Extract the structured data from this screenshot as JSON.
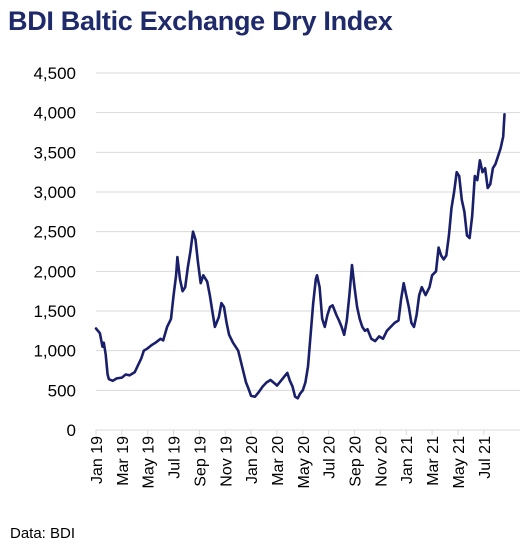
{
  "title": "BDI Baltic Exchange Dry Index",
  "source": "Data: BDI",
  "colors": {
    "title": "#1f2a6b",
    "line": "#1a1f6b",
    "grid": "#d9d9d9"
  },
  "chart_data": {
    "type": "line",
    "title": "BDI Baltic Exchange Dry Index",
    "xlabel": "",
    "ylabel": "",
    "ylim": [
      0,
      4500
    ],
    "yticks": [
      0,
      500,
      1000,
      1500,
      2000,
      2500,
      3000,
      3500,
      4000,
      4500
    ],
    "ytick_labels": [
      "0",
      "500",
      "1,000",
      "1,500",
      "2,000",
      "2,500",
      "3,000",
      "3,500",
      "4,000",
      "4,500"
    ],
    "xlim": [
      0,
      32.8
    ],
    "xticks": [
      0,
      2,
      4,
      6,
      8,
      10,
      12,
      14,
      16,
      18,
      20,
      22,
      24,
      26,
      28,
      30
    ],
    "xtick_labels": [
      "Jan 19",
      "Mar 19",
      "May 19",
      "Jul 19",
      "Sep 19",
      "Nov 19",
      "Jan 20",
      "Mar 20",
      "May 20",
      "Jul 20",
      "Sep 20",
      "Nov 20",
      "Jan 21",
      "Mar 21",
      "May 21",
      "Jul 21"
    ],
    "grid": true,
    "legend": "none",
    "series": [
      {
        "points": [
          [
            0.0,
            1280
          ],
          [
            0.3,
            1220
          ],
          [
            0.5,
            1050
          ],
          [
            0.6,
            1100
          ],
          [
            0.75,
            950
          ],
          [
            0.9,
            700
          ],
          [
            1.0,
            640
          ],
          [
            1.3,
            620
          ],
          [
            1.6,
            650
          ],
          [
            2.0,
            660
          ],
          [
            2.3,
            700
          ],
          [
            2.6,
            690
          ],
          [
            3.0,
            730
          ],
          [
            3.2,
            800
          ],
          [
            3.5,
            900
          ],
          [
            3.7,
            1000
          ],
          [
            4.0,
            1030
          ],
          [
            4.3,
            1070
          ],
          [
            4.6,
            1100
          ],
          [
            5.0,
            1150
          ],
          [
            5.2,
            1130
          ],
          [
            5.5,
            1300
          ],
          [
            5.8,
            1400
          ],
          [
            6.0,
            1700
          ],
          [
            6.2,
            1950
          ],
          [
            6.3,
            2180
          ],
          [
            6.5,
            1900
          ],
          [
            6.7,
            1750
          ],
          [
            6.9,
            1800
          ],
          [
            7.1,
            2050
          ],
          [
            7.3,
            2250
          ],
          [
            7.5,
            2500
          ],
          [
            7.7,
            2400
          ],
          [
            7.9,
            2100
          ],
          [
            8.1,
            1850
          ],
          [
            8.3,
            1950
          ],
          [
            8.6,
            1870
          ],
          [
            8.8,
            1700
          ],
          [
            9.0,
            1500
          ],
          [
            9.2,
            1300
          ],
          [
            9.5,
            1420
          ],
          [
            9.7,
            1600
          ],
          [
            9.9,
            1550
          ],
          [
            10.1,
            1350
          ],
          [
            10.3,
            1200
          ],
          [
            10.6,
            1100
          ],
          [
            11.0,
            1000
          ],
          [
            11.3,
            800
          ],
          [
            11.6,
            600
          ],
          [
            11.8,
            520
          ],
          [
            12.0,
            430
          ],
          [
            12.3,
            420
          ],
          [
            12.6,
            480
          ],
          [
            12.9,
            550
          ],
          [
            13.2,
            600
          ],
          [
            13.5,
            630
          ],
          [
            13.8,
            590
          ],
          [
            14.0,
            560
          ],
          [
            14.3,
            620
          ],
          [
            14.6,
            680
          ],
          [
            14.8,
            720
          ],
          [
            15.0,
            620
          ],
          [
            15.2,
            550
          ],
          [
            15.4,
            420
          ],
          [
            15.6,
            400
          ],
          [
            15.8,
            460
          ],
          [
            16.0,
            500
          ],
          [
            16.2,
            600
          ],
          [
            16.4,
            800
          ],
          [
            16.6,
            1200
          ],
          [
            16.8,
            1600
          ],
          [
            17.0,
            1900
          ],
          [
            17.1,
            1950
          ],
          [
            17.3,
            1800
          ],
          [
            17.5,
            1400
          ],
          [
            17.7,
            1300
          ],
          [
            17.9,
            1450
          ],
          [
            18.1,
            1550
          ],
          [
            18.3,
            1570
          ],
          [
            18.6,
            1450
          ],
          [
            18.8,
            1380
          ],
          [
            19.0,
            1300
          ],
          [
            19.2,
            1200
          ],
          [
            19.4,
            1380
          ],
          [
            19.6,
            1700
          ],
          [
            19.8,
            2080
          ],
          [
            20.0,
            1800
          ],
          [
            20.2,
            1550
          ],
          [
            20.4,
            1400
          ],
          [
            20.6,
            1300
          ],
          [
            20.8,
            1250
          ],
          [
            21.0,
            1270
          ],
          [
            21.3,
            1150
          ],
          [
            21.6,
            1120
          ],
          [
            21.9,
            1180
          ],
          [
            22.2,
            1150
          ],
          [
            22.5,
            1250
          ],
          [
            22.8,
            1300
          ],
          [
            23.1,
            1350
          ],
          [
            23.4,
            1380
          ],
          [
            23.6,
            1650
          ],
          [
            23.8,
            1850
          ],
          [
            24.0,
            1700
          ],
          [
            24.2,
            1550
          ],
          [
            24.4,
            1350
          ],
          [
            24.6,
            1300
          ],
          [
            24.8,
            1450
          ],
          [
            25.0,
            1700
          ],
          [
            25.2,
            1800
          ],
          [
            25.5,
            1700
          ],
          [
            25.8,
            1800
          ],
          [
            26.0,
            1950
          ],
          [
            26.3,
            2000
          ],
          [
            26.5,
            2300
          ],
          [
            26.7,
            2200
          ],
          [
            26.9,
            2150
          ],
          [
            27.1,
            2200
          ],
          [
            27.3,
            2450
          ],
          [
            27.5,
            2800
          ],
          [
            27.7,
            3000
          ],
          [
            27.9,
            3250
          ],
          [
            28.1,
            3200
          ],
          [
            28.3,
            2900
          ],
          [
            28.5,
            2750
          ],
          [
            28.7,
            2450
          ],
          [
            28.9,
            2420
          ],
          [
            29.1,
            2700
          ],
          [
            29.3,
            3200
          ],
          [
            29.5,
            3150
          ],
          [
            29.7,
            3400
          ],
          [
            29.9,
            3250
          ],
          [
            30.1,
            3300
          ],
          [
            30.3,
            3050
          ],
          [
            30.5,
            3100
          ],
          [
            30.7,
            3300
          ],
          [
            30.9,
            3350
          ],
          [
            31.1,
            3450
          ],
          [
            31.3,
            3550
          ],
          [
            31.5,
            3700
          ],
          [
            31.6,
            3980
          ]
        ]
      }
    ]
  }
}
